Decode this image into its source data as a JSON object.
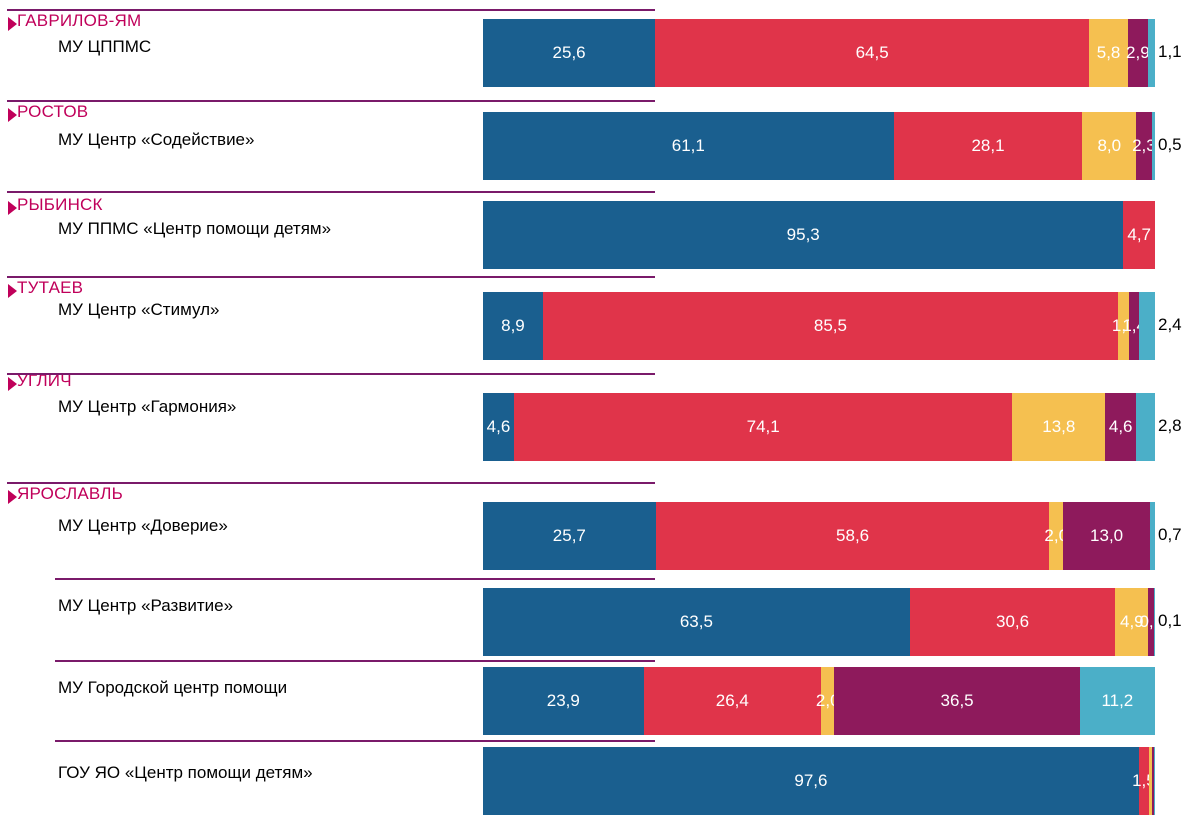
{
  "chart_data": {
    "type": "bar",
    "orientation": "horizontal",
    "stacked": true,
    "percent": true,
    "colors": [
      "#1a5f8f",
      "#e0344a",
      "#f5c050",
      "#8e1a5c",
      "#4bafc8"
    ],
    "groups": [
      {
        "city": "ГАВРИЛОВ-ЯМ",
        "rows": [
          {
            "label": "МУ ЦППМС",
            "values": [
              25.6,
              64.5,
              5.8,
              2.9,
              1.1
            ],
            "labels": [
              "25,6",
              "64,5",
              "5,8",
              "2,9",
              "1,1"
            ]
          }
        ]
      },
      {
        "city": "РОСТОВ",
        "rows": [
          {
            "label": "МУ Центр «Содействие»",
            "values": [
              61.1,
              28.1,
              8.0,
              2.3,
              0.5
            ],
            "labels": [
              "61,1",
              "28,1",
              "8,0",
              "2,3",
              "0,5"
            ]
          }
        ]
      },
      {
        "city": "РЫБИНСК",
        "rows": [
          {
            "label": "МУ ППМС «Центр помощи детям»",
            "values": [
              95.3,
              4.7,
              0,
              0,
              0
            ],
            "labels": [
              "95,3",
              "4,7",
              "",
              "",
              ""
            ]
          }
        ]
      },
      {
        "city": "ТУТАЕВ",
        "rows": [
          {
            "label": "МУ Центр «Стимул»",
            "values": [
              8.9,
              85.5,
              1.7,
              1.4,
              2.4
            ],
            "labels": [
              "8,9",
              "85,5",
              "1,7",
              "1,4",
              "2,4"
            ]
          }
        ]
      },
      {
        "city": "УГЛИЧ",
        "rows": [
          {
            "label": "МУ Центр «Гармония»",
            "values": [
              4.6,
              74.1,
              13.8,
              4.6,
              2.8
            ],
            "labels": [
              "4,6",
              "74,1",
              "13,8",
              "4,6",
              "2,8"
            ]
          }
        ]
      },
      {
        "city": "ЯРОСЛАВЛЬ",
        "rows": [
          {
            "label": "МУ Центр «Доверие»",
            "values": [
              25.7,
              58.6,
              2.0,
              13.0,
              0.7
            ],
            "labels": [
              "25,7",
              "58,6",
              "2,0",
              "13,0",
              "0,7"
            ]
          },
          {
            "label": "МУ Центр «Развитие»",
            "values": [
              63.5,
              30.6,
              4.9,
              0.9,
              0.1
            ],
            "labels": [
              "63,5",
              "30,6",
              "4,9",
              "0,9",
              "0,1"
            ]
          },
          {
            "label": "МУ Городской центр помощи",
            "values": [
              23.9,
              26.4,
              2.0,
              36.5,
              11.2
            ],
            "labels": [
              "23,9",
              "26,4",
              "2,0",
              "36,5",
              "11,2"
            ]
          },
          {
            "label": "ГОУ ЯО «Центр помощи детям»",
            "values": [
              97.6,
              1.5,
              0.5,
              0.2,
              0.2
            ],
            "labels": [
              "97,6",
              "1,5",
              "",
              "",
              ""
            ]
          }
        ]
      }
    ]
  }
}
